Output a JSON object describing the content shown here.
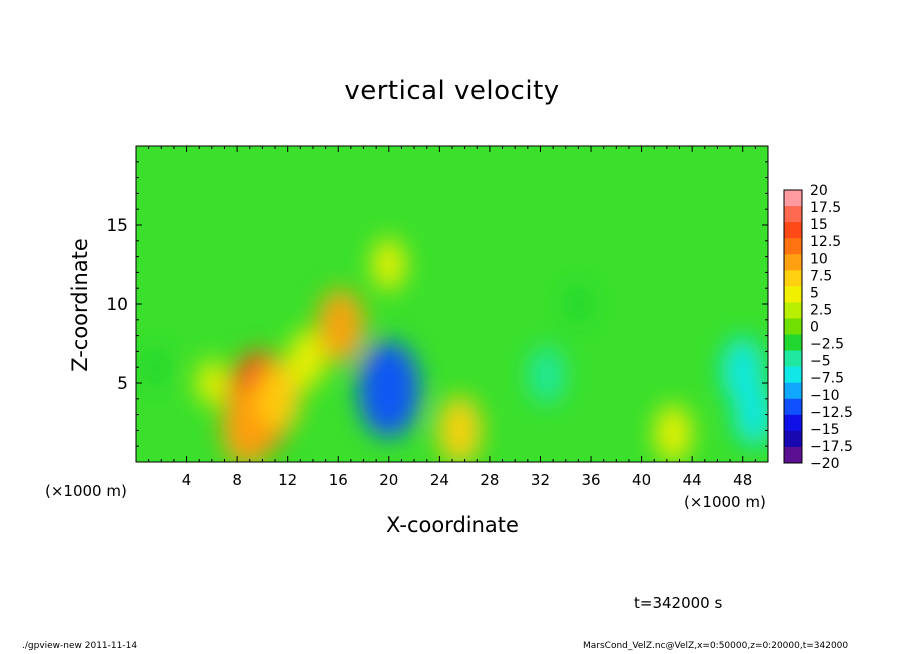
{
  "chart_data": {
    "type": "heatmap",
    "title": "vertical velocity",
    "xlabel": "X-coordinate",
    "ylabel": "Z-coordinate",
    "x_unit_left": "(×1000 m)",
    "x_unit_right": "(×1000 m)",
    "xlim": [
      0,
      50
    ],
    "ylim": [
      0,
      20
    ],
    "x_ticks": [
      4,
      8,
      12,
      16,
      20,
      24,
      28,
      32,
      36,
      40,
      44,
      48
    ],
    "y_ticks": [
      5,
      10,
      15
    ],
    "colorbar": {
      "levels": [
        "20",
        "17.5",
        "15",
        "12.5",
        "10",
        "7.5",
        "5",
        "2.5",
        "0",
        "−2.5",
        "−5",
        "−7.5",
        "−10",
        "−12.5",
        "−15",
        "−17.5",
        "−20"
      ],
      "colors": [
        "#ff9aa0",
        "#ff6a50",
        "#ff4a18",
        "#ff7410",
        "#ffa010",
        "#ffd010",
        "#f0f000",
        "#b8ee00",
        "#70e000",
        "#20d830",
        "#20e8a0",
        "#10e8e8",
        "#10a8ff",
        "#1050ff",
        "#1010e8",
        "#1808b0",
        "#5a1090"
      ]
    },
    "field_features": [
      {
        "x": 9.8,
        "z": 3.8,
        "w": 14
      },
      {
        "x": 8.8,
        "z": 2.2,
        "w": 10
      },
      {
        "x": 11.3,
        "z": 4.1,
        "w": 8
      },
      {
        "x": 16.2,
        "z": 8.6,
        "w": 9
      },
      {
        "x": 13.5,
        "z": 6.5,
        "w": 6
      },
      {
        "x": 20.0,
        "z": 4.6,
        "w": -13
      },
      {
        "x": 20.0,
        "z": 12.5,
        "w": 5
      },
      {
        "x": 25.6,
        "z": 2.0,
        "w": 8
      },
      {
        "x": 6.0,
        "z": 5.0,
        "w": 4
      },
      {
        "x": 48.9,
        "z": 3.0,
        "w": -7
      },
      {
        "x": 48.0,
        "z": 5.8,
        "w": -7.5
      },
      {
        "x": 42.5,
        "z": 1.8,
        "w": 6
      },
      {
        "x": 32.5,
        "z": 5.5,
        "w": -6
      },
      {
        "x": 35.0,
        "z": 10.0,
        "w": -3
      },
      {
        "x": 1.5,
        "z": 6.0,
        "w": -3
      }
    ]
  },
  "annotations": {
    "time": "t=342000 s",
    "footer_left": "./gpview-new 2011-11-14",
    "footer_right": "MarsCond_VelZ.nc@VelZ,x=0:50000,z=0:20000,t=342000"
  }
}
